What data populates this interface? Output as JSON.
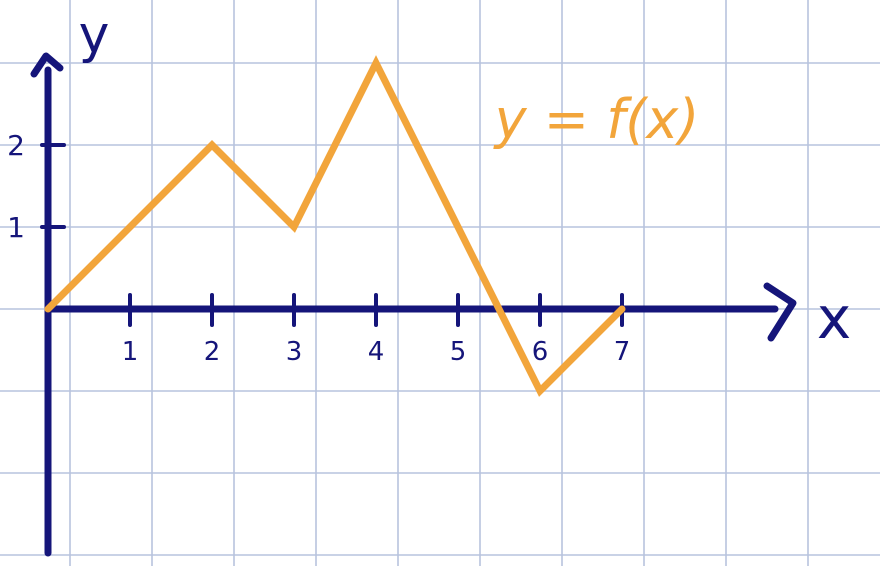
{
  "chart_data": {
    "type": "line",
    "title": "",
    "xlabel": "x",
    "ylabel": "y",
    "x_ticks": [
      "1",
      "2",
      "3",
      "4",
      "5",
      "6",
      "7"
    ],
    "y_ticks": [
      "1",
      "2"
    ],
    "xlim": [
      0,
      7
    ],
    "ylim": [
      -1,
      3
    ],
    "grid": true,
    "series": [
      {
        "name": "",
        "x": [
          0,
          1,
          2,
          3,
          4,
          5,
          6,
          7
        ],
        "y": [
          0,
          1,
          2,
          1,
          3,
          1,
          -1,
          0
        ]
      }
    ],
    "annotations": [
      {
        "text": "y = f(x)"
      }
    ],
    "colors": {
      "background": "#ffffff",
      "grid": "#b7c3dd",
      "axis": "#15157a",
      "line": "#f2a53b"
    }
  }
}
